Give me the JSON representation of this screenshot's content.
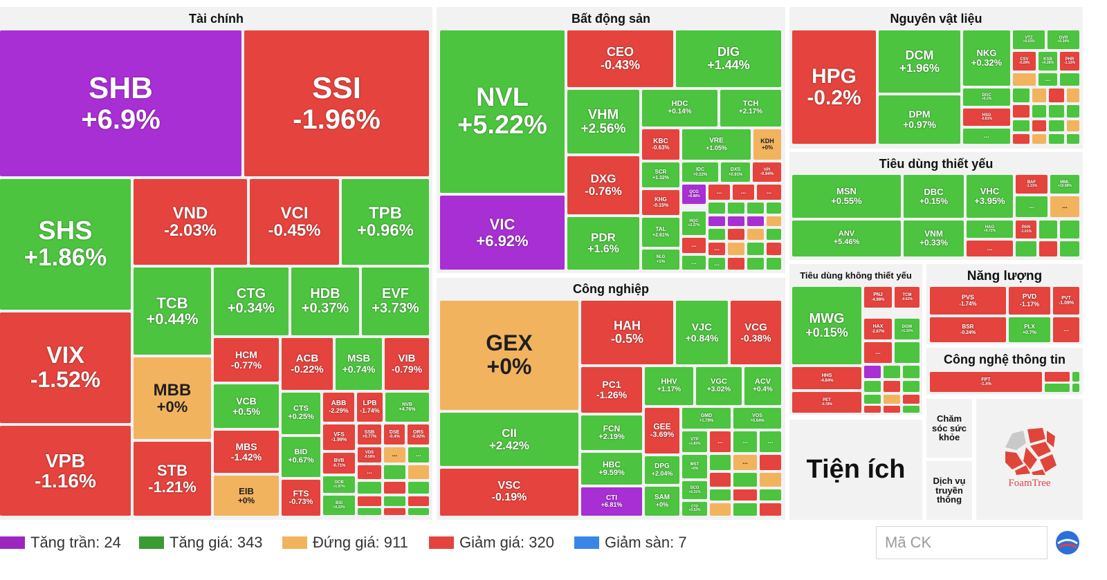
{
  "sections": {
    "tai_chinh": "Tài chính",
    "bat_dong_san": "Bất động sản",
    "nguyen_vat_lieu": "Nguyên vật liệu",
    "tieu_dung_thiet_yeu": "Tiêu dùng thiết yếu",
    "tieu_dung_khong_thiet_yeu": "Tiêu dùng không thiết yếu",
    "nang_luong": "Năng lượng",
    "cong_nghiep": "Công nghiệp",
    "cong_nghe": "Công nghệ thông tin",
    "tien_ich": "Tiện ích",
    "cham_soc": "Chăm sóc sức khỏe",
    "dich_vu": "Dịch vụ truyền thông"
  },
  "foamtree_label": "FoamTree",
  "colors": {
    "green": "#4cc43f",
    "red": "#e5433d",
    "yellow": "#f2b35f",
    "purple": "#a82fd3",
    "blue": "#3a86e8"
  },
  "tiles": {
    "SHB": "+6.9%",
    "SSI": "-1.96%",
    "SHS": "+1.86%",
    "VND": "-2.03%",
    "VCI": "-0.45%",
    "TPB": "+0.96%",
    "TCB": "+0.44%",
    "CTG": "+0.34%",
    "HDB": "+0.37%",
    "EVF": "+3.73%",
    "VIX": "-1.52%",
    "MBB": "+0%",
    "HCM": "-0.77%",
    "ACB": "-0.22%",
    "MSB": "+0.74%",
    "VIB": "-0.79%",
    "VCB": "+0.5%",
    "CTS": "+0.25%",
    "ABB": "-2.29%",
    "LPB": "-1.74%",
    "NVB": "+4.76%",
    "VFS": "-1.99%",
    "SSB": "+0.77%",
    "DSE": "-0.4%",
    "ORS": "-0.92%",
    "BVB": "-0.71%",
    "VDS": "-0.58%",
    "MBS": "-1.42%",
    "BID": "+0.67%",
    "OCB": "+1.97%",
    "BSI": "+0.22%",
    "VPB": "-1.16%",
    "STB": "-1.21%",
    "EIB": "+0%",
    "FTS": "-0.73%",
    "NVL": "+5.22%",
    "CEO": "-0.43%",
    "DIG": "+1.44%",
    "VHM": "+2.56%",
    "HDC": "+0.14%",
    "TCH": "+2.17%",
    "KBC": "-0.63%",
    "VRE": "+1.05%",
    "KDH": "+0%",
    "VIC": "+6.92%",
    "DXG": "-0.76%",
    "SCR": "+1.32%",
    "IDC": "+0.22%",
    "DXS": "+0.91%",
    "VPI": "-0.94%",
    "KHG": "-0.15%",
    "QCG": "+6.98%",
    "HQC": "+2.37%",
    "TAL": "+2.61%",
    "PDR": "+1.6%",
    "NLG": "+1%",
    "GEX": "+0%",
    "HAH": "-0.5%",
    "VJC": "+0.84%",
    "VCG": "-0.38%",
    "PC1": "-1.26%",
    "HHV": "+1.17%",
    "VGC": "+3.02%",
    "ACV": "+0.4%",
    "CII": "+2.42%",
    "FCN": "+2.19%",
    "GEE": "-3.69%",
    "GMD": "+1.79%",
    "VOS": "+0.64%",
    "VTP": "+1.83%",
    "HBC": "+9.59%",
    "DPG": "+2.04%",
    "MST": "+0%",
    "SCG": "+0.31%",
    "VSC": "-0.19%",
    "CTI": "+6.81%",
    "SAM": "+0%",
    "CTD": "+0.52%",
    "HPG": "-0.2%",
    "DCM": "+1.96%",
    "NKG": "+0.32%",
    "VTZ": "+0.53%",
    "GVR": "+0.34%",
    "CSV": "-0.28%",
    "KSB": "+0.28%",
    "PHR": "-1.12%",
    "DGC": "+0.2%",
    "DPM": "+0.97%",
    "HSG": "-0.81%",
    "MSN": "+0.55%",
    "DBC": "+0.15%",
    "VHC": "+3.95%",
    "BAF": "-1.31%",
    "MML": "+10.98%",
    "ANV": "+5.46%",
    "VNM": "+0.33%",
    "HAG": "+0.72%",
    "PAN": "-1.01%",
    "MWG": "+0.15%",
    "PNJ": "-4.98%",
    "TCM": "-0.62%",
    "HAX": "-2.67%",
    "DGW": "+1.15%",
    "HHS": "-4.84%",
    "PET": "-0.78%",
    "PVS": "-1.74%",
    "PVD": "-1.17%",
    "PVT": "-1.09%",
    "BSR": "-0.24%",
    "PLX": "+0.7%",
    "FPT": "-1.4%"
  },
  "ellipsis": "...",
  "legend": [
    {
      "label": "Tăng trần: 24",
      "color": "#9c27c0"
    },
    {
      "label": "Tăng giá: 343",
      "color": "#3a9a34"
    },
    {
      "label": "Đứng giá: 911",
      "color": "#f2b35f"
    },
    {
      "label": "Giảm giá: 320",
      "color": "#e5433d"
    },
    {
      "label": "Giảm sàn: 7",
      "color": "#3a86e8"
    }
  ],
  "search": {
    "placeholder": "Mã CK"
  }
}
